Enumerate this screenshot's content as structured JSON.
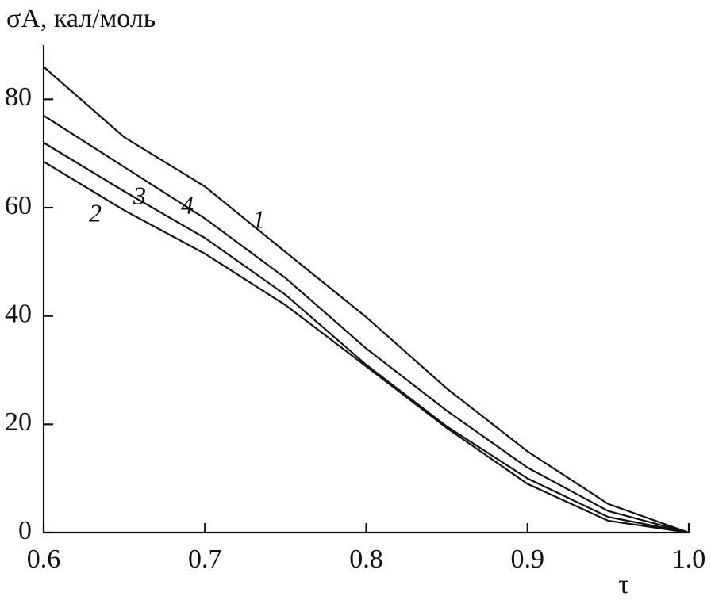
{
  "chart_data": {
    "type": "line",
    "ylabel": "σA, кал/моль",
    "xlabel": "τ",
    "x": [
      0.6,
      0.65,
      0.7,
      0.75,
      0.8,
      0.85,
      0.9,
      0.95,
      1.0
    ],
    "series": [
      {
        "name": "1",
        "color": "#111111",
        "values": [
          86,
          73,
          63.9,
          51.8,
          39.8,
          26.6,
          15,
          5.3,
          0
        ]
      },
      {
        "name": "2",
        "color": "#111111",
        "values": [
          68.5,
          59.5,
          51.5,
          42,
          30.7,
          19.3,
          9,
          2.2,
          0
        ]
      },
      {
        "name": "3",
        "color": "#111111",
        "values": [
          72,
          63,
          54.4,
          43.9,
          31,
          19.6,
          10,
          2.9,
          0
        ]
      },
      {
        "name": "4",
        "color": "#111111",
        "values": [
          77,
          67.5,
          58,
          47,
          34,
          22.5,
          12,
          4,
          0
        ]
      }
    ],
    "xlim": [
      0.6,
      1.0
    ],
    "ylim": [
      0,
      90
    ],
    "xticks": [
      0.6,
      0.7,
      0.8,
      0.9,
      {
        "value": 1.0,
        "label": "1.0"
      }
    ],
    "yticks": [
      0,
      20,
      40,
      60,
      80
    ]
  }
}
